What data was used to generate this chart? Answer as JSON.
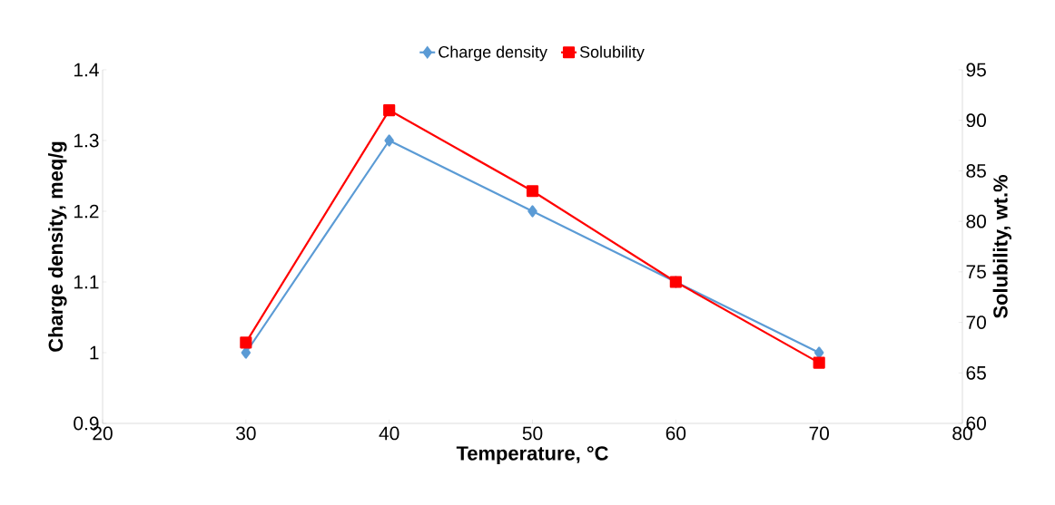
{
  "chart_data": {
    "type": "line",
    "xlabel": "Temperature, °C",
    "ylabel": "Charge density, meq/g",
    "y2label": "Solubility, wt.%",
    "x": [
      30,
      40,
      50,
      60,
      70
    ],
    "series": [
      {
        "name": "Charge density",
        "color": "#5b9bd5",
        "marker": "diamond",
        "values": [
          1.0,
          1.3,
          1.2,
          1.1,
          1.0
        ]
      },
      {
        "name": "Solubility",
        "color": "#ff0000",
        "marker": "square",
        "axis": "y2",
        "values": [
          68,
          91,
          83,
          74,
          66
        ]
      }
    ],
    "xlim": [
      20,
      80
    ],
    "xticks": [
      20,
      30,
      40,
      50,
      60,
      70,
      80
    ],
    "ylim": [
      0.9,
      1.4
    ],
    "yticks": [
      0.9,
      1,
      1.1,
      1.2,
      1.3,
      1.4
    ],
    "y2lim": [
      60,
      95
    ],
    "y2ticks": [
      60,
      65,
      70,
      75,
      80,
      85,
      90,
      95
    ],
    "grid": false,
    "legend": "top",
    "line_style": "solid"
  }
}
